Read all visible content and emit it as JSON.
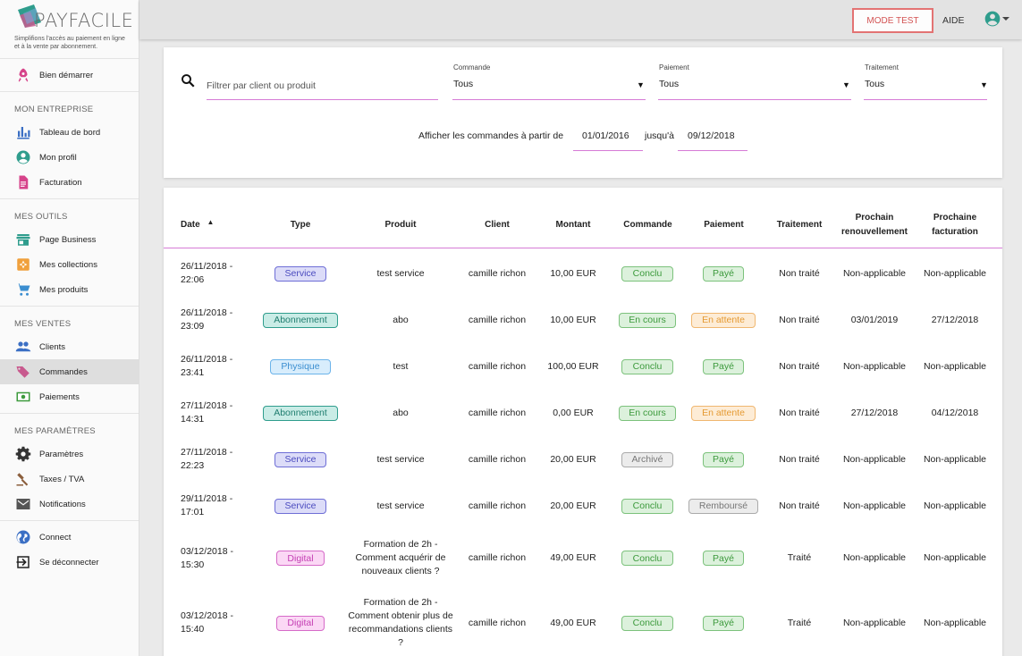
{
  "brand": {
    "name": "PAYFACILE",
    "tagline": "Simplifions l'accès au paiement en ligne et à la vente par abonnement."
  },
  "colors": {
    "accent": "#d67bd6",
    "mode_test_border": "#e37373",
    "account_icon": "#2f9d8d"
  },
  "sidebar": {
    "top_item": {
      "label": "Bien démarrer",
      "icon": "rocket-icon"
    },
    "sections": [
      {
        "heading": "MON ENTREPRISE",
        "items": [
          {
            "label": "Tableau de bord",
            "icon": "bar-chart-icon"
          },
          {
            "label": "Mon profil",
            "icon": "user-circle-icon"
          },
          {
            "label": "Facturation",
            "icon": "document-icon"
          }
        ]
      },
      {
        "heading": "MES OUTILS",
        "items": [
          {
            "label": "Page Business",
            "icon": "store-icon"
          },
          {
            "label": "Mes collections",
            "icon": "collection-icon"
          },
          {
            "label": "Mes produits",
            "icon": "cart-icon"
          }
        ]
      },
      {
        "heading": "MES VENTES",
        "items": [
          {
            "label": "Clients",
            "icon": "people-icon"
          },
          {
            "label": "Commandes",
            "icon": "tag-icon"
          },
          {
            "label": "Paiements",
            "icon": "money-icon"
          }
        ]
      },
      {
        "heading": "MES PARAMÈTRES",
        "items": [
          {
            "label": "Paramètres",
            "icon": "gear-icon"
          },
          {
            "label": "Taxes / TVA",
            "icon": "gavel-icon"
          },
          {
            "label": "Notifications",
            "icon": "mail-icon"
          }
        ]
      }
    ],
    "bottom_items": [
      {
        "label": "Connect",
        "icon": "globe-icon"
      },
      {
        "label": "Se déconnecter",
        "icon": "logout-icon"
      }
    ],
    "active_item": "Commandes"
  },
  "topbar": {
    "mode_test_label": "MODE TEST",
    "aide_label": "AIDE"
  },
  "filters": {
    "search_placeholder": "Filtrer par client ou produit",
    "commande": {
      "label": "Commande",
      "value": "Tous"
    },
    "paiement": {
      "label": "Paiement",
      "value": "Tous"
    },
    "traitement": {
      "label": "Traitement",
      "value": "Tous"
    },
    "date_from_label": "Afficher les commandes à partir de",
    "date_from": "01/01/2016",
    "date_to_label": "jusqu'à",
    "date_to": "09/12/2018"
  },
  "table": {
    "headers": {
      "date": "Date",
      "type": "Type",
      "produit": "Produit",
      "client": "Client",
      "montant": "Montant",
      "commande": "Commande",
      "paiement": "Paiement",
      "traitement": "Traitement",
      "renouvellement": "Prochain renouvellement",
      "facturation": "Prochaine facturation"
    },
    "rows": [
      {
        "date": "26/11/2018 - 22:06",
        "type": "Service",
        "produit": "test service",
        "client": "camille richon",
        "montant": "10,00 EUR",
        "commande": "Conclu",
        "paiement": "Payé",
        "traitement": "Non traité",
        "renouvellement": "Non-applicable",
        "facturation": "Non-applicable"
      },
      {
        "date": "26/11/2018 - 23:09",
        "type": "Abonnement",
        "produit": "abo",
        "client": "camille richon",
        "montant": "10,00 EUR",
        "commande": "En cours",
        "paiement": "En attente",
        "traitement": "Non traité",
        "renouvellement": "03/01/2019",
        "facturation": "27/12/2018"
      },
      {
        "date": "26/11/2018 - 23:41",
        "type": "Physique",
        "produit": "test",
        "client": "camille richon",
        "montant": "100,00 EUR",
        "commande": "Conclu",
        "paiement": "Payé",
        "traitement": "Non traité",
        "renouvellement": "Non-applicable",
        "facturation": "Non-applicable"
      },
      {
        "date": "27/11/2018 - 14:31",
        "type": "Abonnement",
        "produit": "abo",
        "client": "camille richon",
        "montant": "0,00 EUR",
        "commande": "En cours",
        "paiement": "En attente",
        "traitement": "Non traité",
        "renouvellement": "27/12/2018",
        "facturation": "04/12/2018"
      },
      {
        "date": "27/11/2018 - 22:23",
        "type": "Service",
        "produit": "test service",
        "client": "camille richon",
        "montant": "20,00 EUR",
        "commande": "Archivé",
        "paiement": "Payé",
        "traitement": "Non traité",
        "renouvellement": "Non-applicable",
        "facturation": "Non-applicable"
      },
      {
        "date": "29/11/2018 - 17:01",
        "type": "Service",
        "produit": "test service",
        "client": "camille richon",
        "montant": "20,00 EUR",
        "commande": "Conclu",
        "paiement": "Remboursé",
        "traitement": "Non traité",
        "renouvellement": "Non-applicable",
        "facturation": "Non-applicable"
      },
      {
        "date": "03/12/2018 - 15:30",
        "type": "Digital",
        "produit": "Formation de 2h - Comment acquérir de nouveaux clients ?",
        "client": "camille richon",
        "montant": "49,00 EUR",
        "commande": "Conclu",
        "paiement": "Payé",
        "traitement": "Traité",
        "renouvellement": "Non-applicable",
        "facturation": "Non-applicable"
      },
      {
        "date": "03/12/2018 - 15:40",
        "type": "Digital",
        "produit": "Formation de 2h - Comment obtenir plus de recommandations clients ?",
        "client": "camille richon",
        "montant": "49,00 EUR",
        "commande": "Conclu",
        "paiement": "Payé",
        "traitement": "Traité",
        "renouvellement": "Non-applicable",
        "facturation": "Non-applicable"
      }
    ]
  }
}
